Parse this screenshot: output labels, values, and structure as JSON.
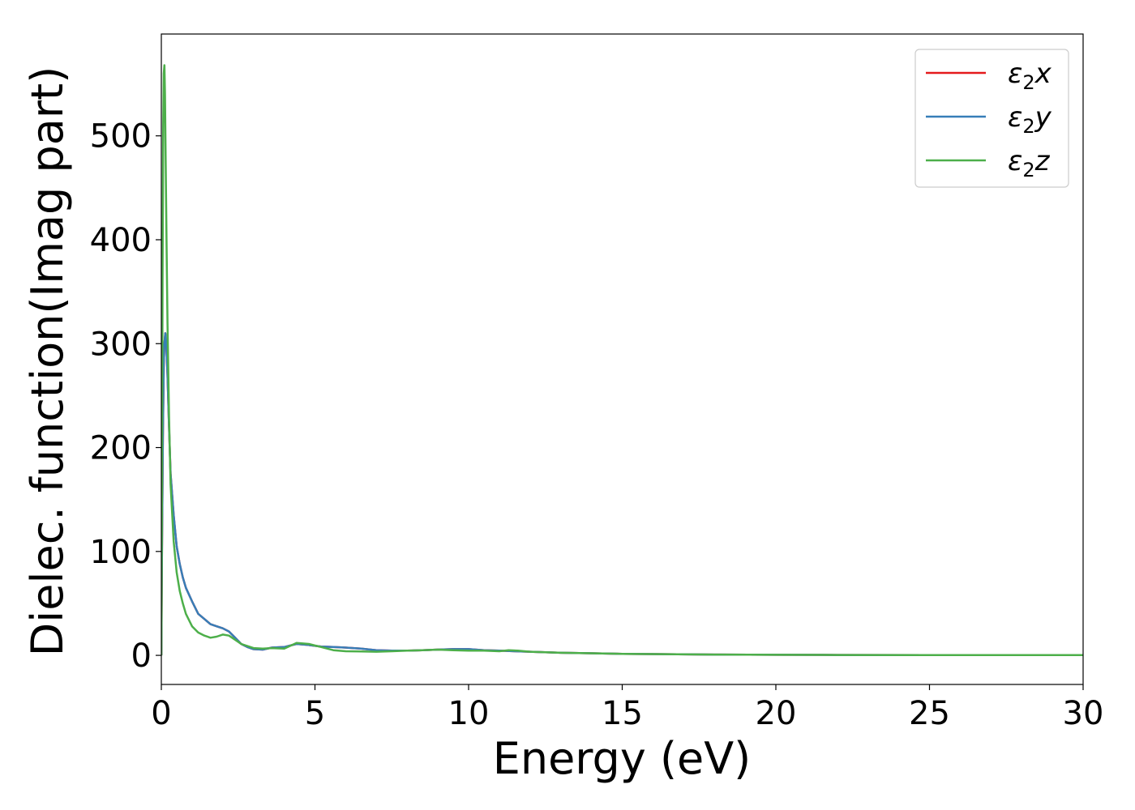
{
  "chart_data": {
    "type": "line",
    "xlabel": "Energy (eV)",
    "ylabel": "Dielec. function(Imag part)",
    "xlim": [
      0,
      30
    ],
    "ylim": [
      -28,
      598
    ],
    "xticks": [
      0,
      5,
      10,
      15,
      20,
      25,
      30
    ],
    "yticks": [
      0,
      100,
      200,
      300,
      400,
      500
    ],
    "grid": false,
    "legend_position": "top-right",
    "series": [
      {
        "name": "ε2x",
        "legend_base": "ε",
        "legend_sub": "2",
        "legend_var": "x",
        "color": "#e41a1c",
        "x": [
          0,
          0.02,
          0.05,
          0.08,
          0.1,
          0.13,
          0.16,
          0.2,
          0.25,
          0.3,
          0.4,
          0.5,
          0.6,
          0.7,
          0.8,
          1.0,
          1.2,
          1.4,
          1.6,
          1.8,
          2.0,
          2.2,
          2.4,
          2.6,
          2.8,
          3.0,
          3.3,
          3.6,
          4.0,
          4.4,
          4.8,
          5.2,
          5.6,
          6.0,
          6.5,
          7.0,
          7.5,
          8.0,
          8.5,
          9.0,
          9.5,
          10.0,
          10.5,
          11.0,
          11.5,
          12.0,
          13.0,
          14.0,
          15.0,
          16.0,
          18.0,
          20.0,
          22.0,
          25.0,
          28.0,
          30.0
        ],
        "values": [
          0,
          100,
          210,
          280,
          300,
          310,
          300,
          270,
          220,
          175,
          135,
          105,
          88,
          75,
          65,
          52,
          40,
          35,
          30,
          28,
          26,
          23,
          17,
          11,
          8,
          6,
          5.5,
          7.5,
          8,
          11,
          10,
          8.5,
          8,
          7.5,
          6.5,
          5,
          4.5,
          4.5,
          5,
          5.5,
          6,
          6,
          5,
          4.5,
          4,
          3.5,
          2.5,
          2,
          1.5,
          1.2,
          0.8,
          0.5,
          0.4,
          0.3,
          0.2,
          0.2
        ]
      },
      {
        "name": "ε2y",
        "legend_base": "ε",
        "legend_sub": "2",
        "legend_var": "y",
        "color": "#377eb8",
        "x": [
          0,
          0.02,
          0.05,
          0.08,
          0.1,
          0.13,
          0.16,
          0.2,
          0.25,
          0.3,
          0.4,
          0.5,
          0.6,
          0.7,
          0.8,
          1.0,
          1.2,
          1.4,
          1.6,
          1.8,
          2.0,
          2.2,
          2.4,
          2.6,
          2.8,
          3.0,
          3.3,
          3.6,
          4.0,
          4.4,
          4.8,
          5.2,
          5.6,
          6.0,
          6.5,
          7.0,
          7.5,
          8.0,
          8.5,
          9.0,
          9.5,
          10.0,
          10.5,
          11.0,
          11.5,
          12.0,
          13.0,
          14.0,
          15.0,
          16.0,
          18.0,
          20.0,
          22.0,
          25.0,
          28.0,
          30.0
        ],
        "values": [
          0,
          100,
          210,
          280,
          300,
          310,
          300,
          270,
          220,
          175,
          135,
          105,
          88,
          75,
          65,
          52,
          40,
          35,
          30,
          28,
          26,
          23,
          17,
          11,
          8,
          6,
          5.5,
          7.5,
          8,
          11,
          10,
          8.5,
          8,
          7.5,
          6.5,
          5,
          4.5,
          4.5,
          5,
          5.5,
          6,
          6,
          5,
          4.5,
          4,
          3.5,
          2.5,
          2,
          1.5,
          1.2,
          0.8,
          0.5,
          0.4,
          0.3,
          0.2,
          0.2
        ]
      },
      {
        "name": "ε2z",
        "legend_base": "ε",
        "legend_sub": "2",
        "legend_var": "z",
        "color": "#4daf4a",
        "x": [
          0,
          0.02,
          0.04,
          0.06,
          0.08,
          0.1,
          0.12,
          0.14,
          0.17,
          0.2,
          0.25,
          0.3,
          0.4,
          0.5,
          0.6,
          0.7,
          0.8,
          1.0,
          1.2,
          1.4,
          1.6,
          1.8,
          2.0,
          2.2,
          2.4,
          2.6,
          2.8,
          3.0,
          3.3,
          3.6,
          4.0,
          4.4,
          4.8,
          5.2,
          5.6,
          6.0,
          6.5,
          7.0,
          7.5,
          8.0,
          8.5,
          9.0,
          9.5,
          10.0,
          10.5,
          11.0,
          11.3,
          11.6,
          12.0,
          13.0,
          14.0,
          15.0,
          16.0,
          18.0,
          20.0,
          22.0,
          25.0,
          28.0,
          30.0
        ],
        "values": [
          0,
          150,
          360,
          510,
          560,
          568,
          540,
          480,
          400,
          320,
          230,
          165,
          110,
          80,
          62,
          50,
          40,
          28,
          22,
          19,
          17,
          18,
          20,
          19,
          15,
          11,
          9,
          7,
          6.5,
          7,
          6.5,
          12,
          11,
          8,
          5,
          4,
          3.8,
          3.5,
          4,
          4.5,
          5,
          5.5,
          5,
          4.5,
          4.5,
          4,
          5,
          4.5,
          3.5,
          2.5,
          2,
          1.5,
          1.2,
          0.8,
          0.5,
          0.4,
          0.3,
          0.2,
          0.2
        ]
      }
    ]
  }
}
